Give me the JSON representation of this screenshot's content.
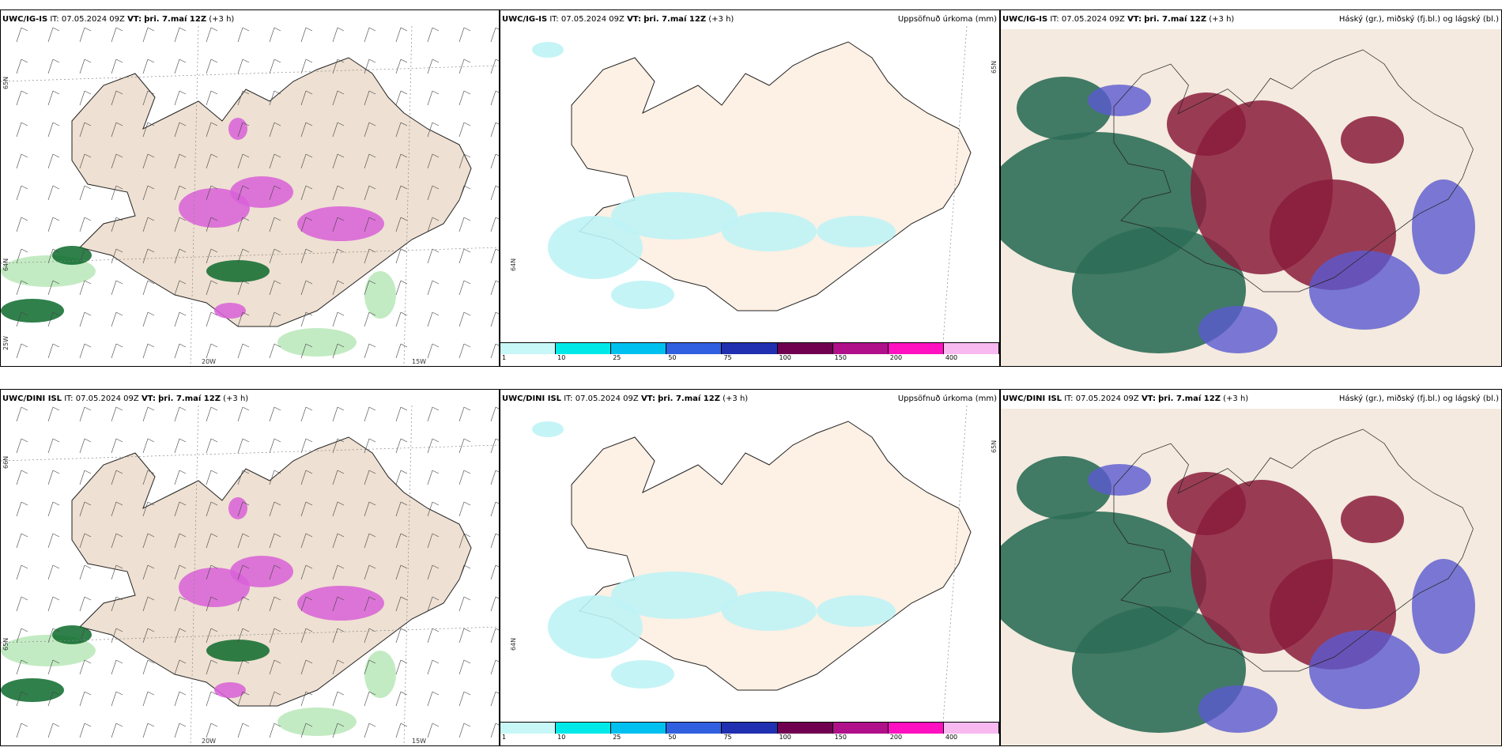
{
  "rows": [
    {
      "model": "UWC/IG-IS",
      "it_label": "IT:",
      "it_value": "07.05.2024 09Z",
      "vt_label": "VT:",
      "vt_value": "þri. 7.maí 12Z",
      "lead": "(+3 h)",
      "lon_labels": [
        "20W",
        "15W"
      ],
      "lat_labels": [
        "65N",
        "64N",
        "25W"
      ]
    },
    {
      "model": "UWC/DINI ISL",
      "it_label": "IT:",
      "it_value": "07.05.2024 09Z",
      "vt_label": "VT:",
      "vt_value": "þri. 7.maí 12Z",
      "lead": "(+3 h)",
      "lon_labels": [
        "20W",
        "15W"
      ],
      "lat_labels": [
        "66N",
        "65N",
        "64N"
      ]
    }
  ],
  "precip_title": "Uppsöfnuð úrkoma (mm)",
  "cloud_title": "Háský (gr.), miðský (fj.bl.) og lágský (bl.)",
  "colorbar": {
    "ticks": [
      "1",
      "10",
      "25",
      "50",
      "75",
      "100",
      "150",
      "200",
      "400"
    ],
    "colors": [
      "#c8f7f7",
      "#00e8e8",
      "#00c0f0",
      "#3060e0",
      "#2030b0",
      "#700050",
      "#b0108a",
      "#ff10c0",
      "#f8b8f0"
    ]
  },
  "colors": {
    "land": "#eee0d2",
    "land_precip": "#fdf0e4",
    "precip": "#bff3f5",
    "green_light": "#b8e8b8",
    "green_dark": "#0c6a2c",
    "magenta": "#d860d8",
    "cloud_high": "#2e6e58",
    "cloud_mid": "#8a1c3c",
    "cloud_low": "#5a5ad0"
  }
}
